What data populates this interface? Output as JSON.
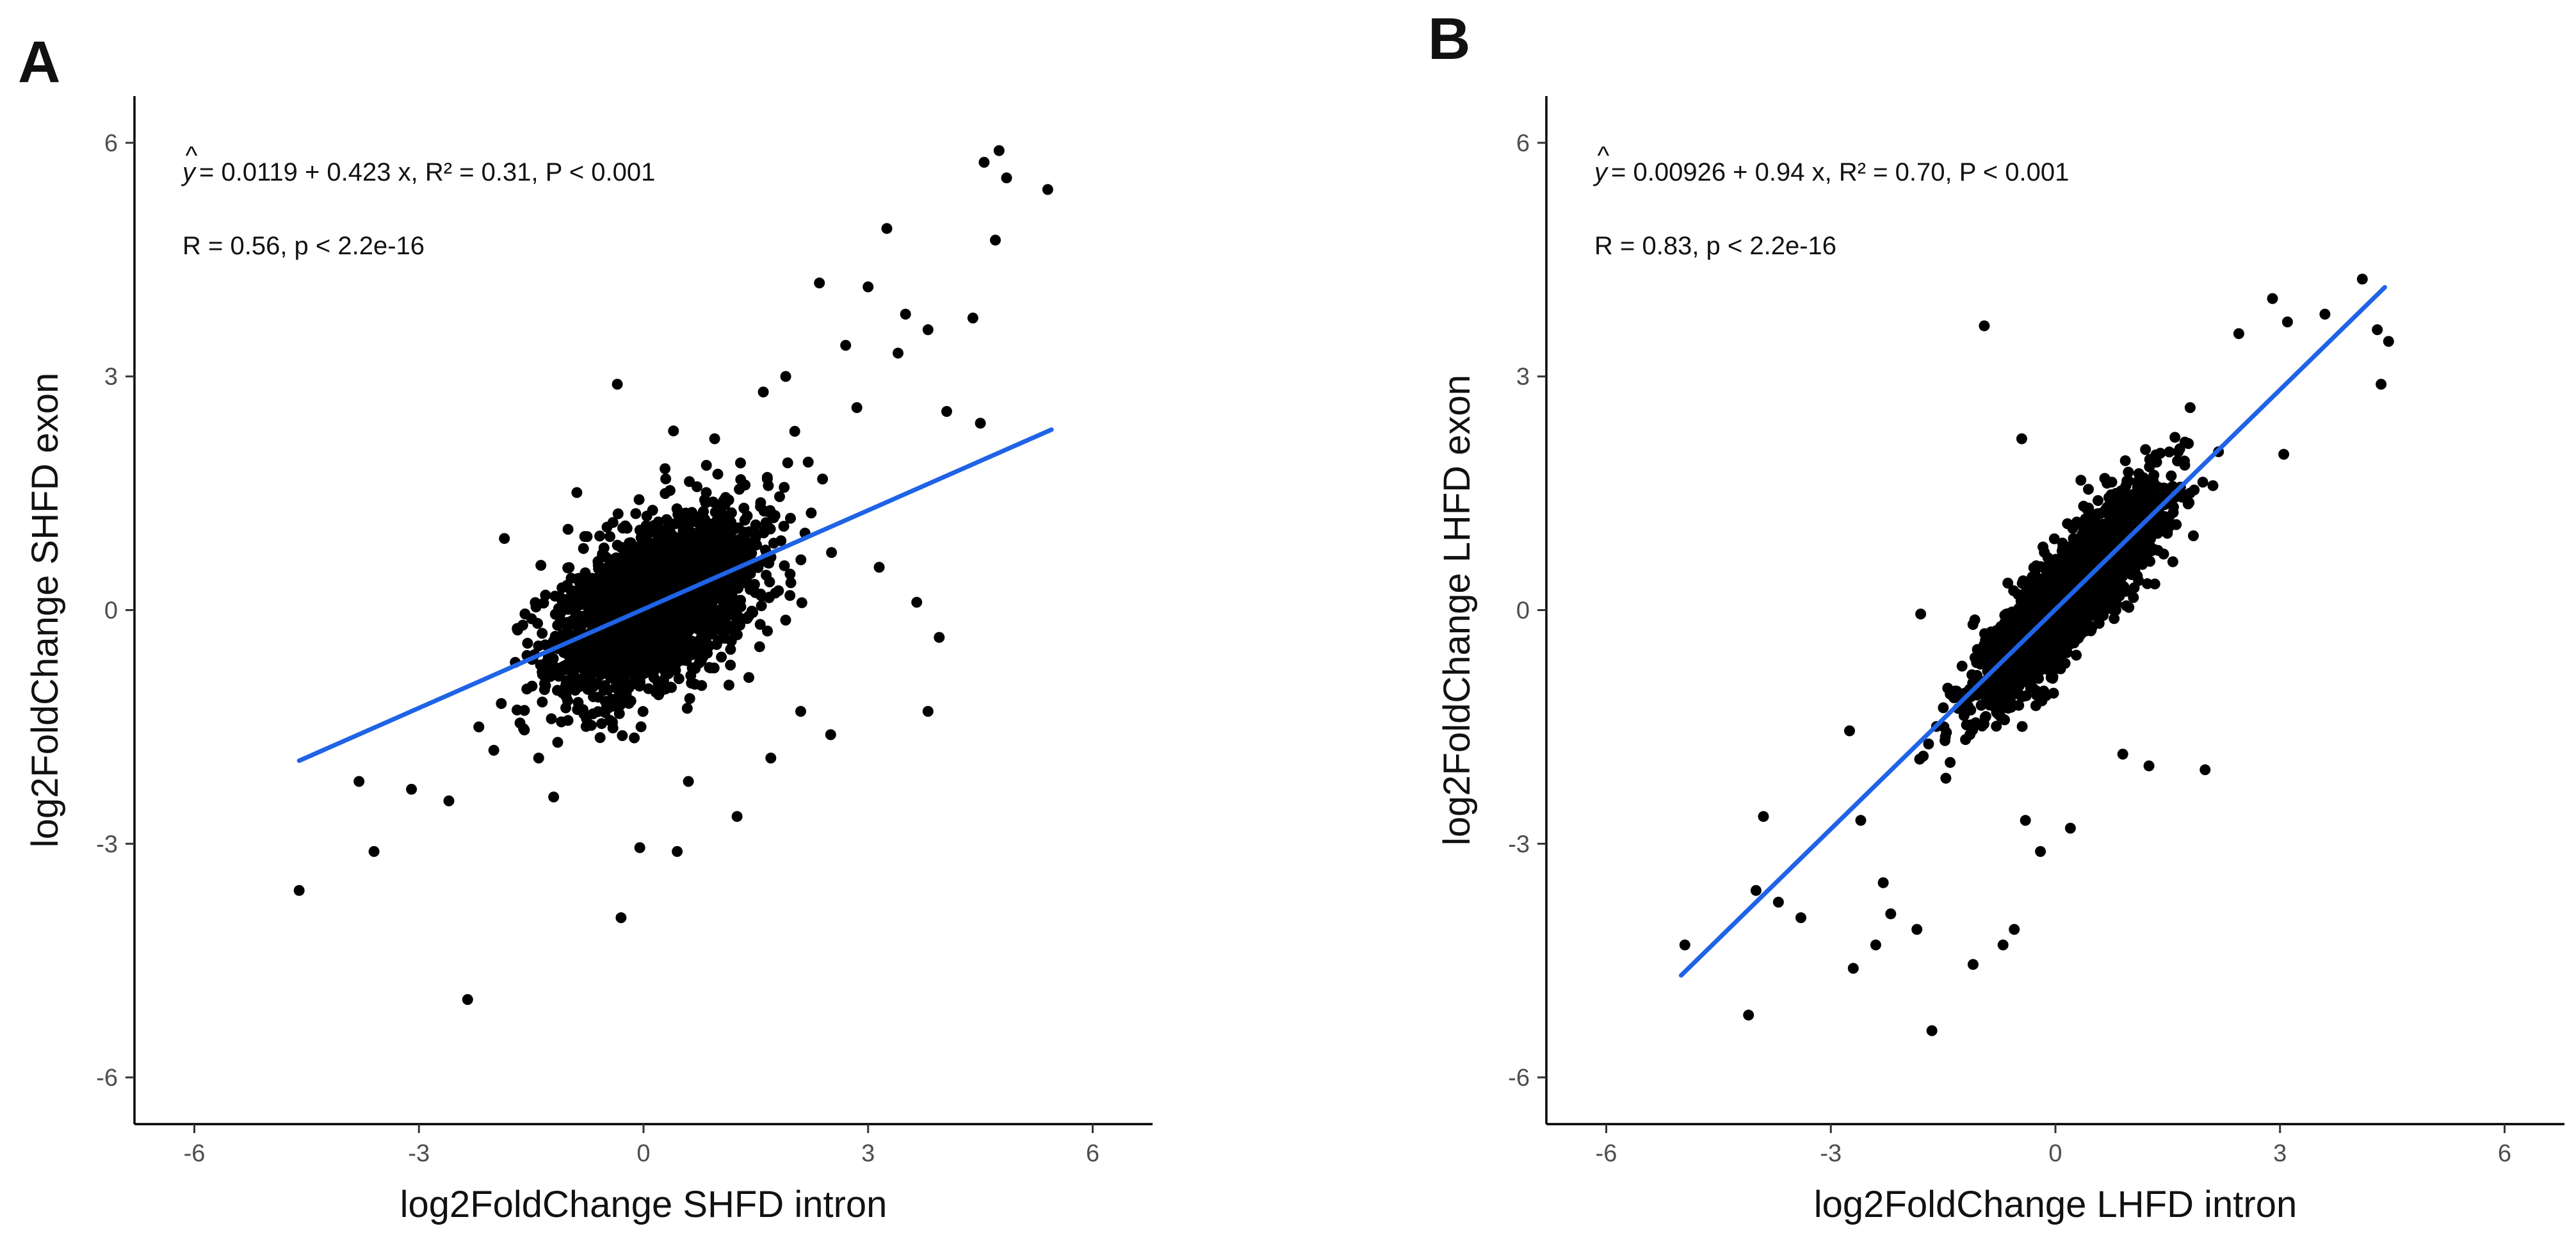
{
  "chart_data": [
    {
      "panel": "A",
      "type": "scatter",
      "xlabel": "log2FoldChange SHFD intron",
      "ylabel": "log2FoldChange SHFD exon",
      "xlim": [
        -6.8,
        6.8
      ],
      "ylim": [
        -6.6,
        6.6
      ],
      "xticks": [
        "-6",
        "-3",
        "0",
        "3",
        "6"
      ],
      "yticks": [
        "-6",
        "-3",
        "0",
        "3",
        "6"
      ],
      "regression": {
        "intercept": 0.0119,
        "slope": 0.423,
        "x_range": [
          -4.6,
          5.45
        ],
        "color": "#1f63e6"
      },
      "stats": {
        "equation": "= 0.0119 + 0.423 x, R² = 0.31, P < 0.001",
        "corr": "R = 0.56, p < 2.2e-16"
      },
      "synthetic": {
        "n": 2500,
        "sd_x": 0.65,
        "sd_res": 0.5,
        "seed": 11
      },
      "points": [
        [
          -4.6,
          -3.6
        ],
        [
          -3.8,
          -2.2
        ],
        [
          -3.6,
          -3.1
        ],
        [
          -3.1,
          -2.3
        ],
        [
          -2.6,
          -2.45
        ],
        [
          -2.35,
          -5.0
        ],
        [
          -0.3,
          -3.95
        ],
        [
          -0.05,
          -3.05
        ],
        [
          0.45,
          -3.1
        ],
        [
          1.25,
          -2.65
        ],
        [
          -1.2,
          -2.4
        ],
        [
          2.5,
          -1.6
        ],
        [
          4.55,
          5.75
        ],
        [
          4.75,
          5.9
        ],
        [
          4.85,
          5.55
        ],
        [
          5.4,
          5.4
        ],
        [
          4.7,
          4.75
        ],
        [
          3.25,
          4.9
        ],
        [
          2.35,
          4.2
        ],
        [
          3.0,
          4.15
        ],
        [
          3.5,
          3.8
        ],
        [
          3.8,
          3.6
        ],
        [
          3.4,
          3.3
        ],
        [
          4.4,
          3.75
        ],
        [
          4.5,
          2.4
        ],
        [
          -0.35,
          2.9
        ],
        [
          0.4,
          2.3
        ],
        [
          3.65,
          0.1
        ],
        [
          3.95,
          -0.35
        ],
        [
          3.8,
          -1.3
        ],
        [
          1.9,
          3.0
        ],
        [
          2.7,
          3.4
        ],
        [
          2.2,
          1.9
        ],
        [
          1.6,
          2.8
        ],
        [
          0.95,
          2.2
        ],
        [
          2.85,
          2.6
        ],
        [
          4.05,
          2.55
        ],
        [
          -1.65,
          -1.45
        ],
        [
          -2.0,
          -1.8
        ],
        [
          -2.2,
          -1.5
        ],
        [
          -1.4,
          -1.9
        ],
        [
          0.6,
          -2.2
        ],
        [
          1.7,
          -1.9
        ],
        [
          2.1,
          -1.3
        ],
        [
          -1.9,
          -1.2
        ]
      ]
    },
    {
      "panel": "B",
      "type": "scatter",
      "xlabel": "log2FoldChange LHFD intron",
      "ylabel": "log2FoldChange LHFD exon",
      "xlim": [
        -6.8,
        6.8
      ],
      "ylim": [
        -6.6,
        6.6
      ],
      "xticks": [
        "-6",
        "-3",
        "0",
        "3",
        "6"
      ],
      "yticks": [
        "-6",
        "-3",
        "0",
        "3",
        "6"
      ],
      "regression": {
        "intercept": 0.00926,
        "slope": 0.94,
        "x_range": [
          -5.0,
          4.4
        ],
        "color": "#1f63e6"
      },
      "stats": {
        "equation": "= 0.00926 + 0.94 x, R² = 0.70, P < 0.001",
        "corr": "R = 0.83, p < 2.2e-16"
      },
      "synthetic": {
        "n": 2500,
        "sd_x": 0.6,
        "sd_res": 0.33,
        "seed": 29
      },
      "points": [
        [
          -4.95,
          -4.3
        ],
        [
          -4.1,
          -5.2
        ],
        [
          -4.0,
          -3.6
        ],
        [
          -3.7,
          -3.75
        ],
        [
          -3.9,
          -2.65
        ],
        [
          -3.4,
          -3.95
        ],
        [
          -2.7,
          -4.6
        ],
        [
          -2.4,
          -4.3
        ],
        [
          -2.2,
          -3.9
        ],
        [
          -2.3,
          -3.5
        ],
        [
          -1.85,
          -4.1
        ],
        [
          -1.65,
          -5.4
        ],
        [
          -1.1,
          -4.55
        ],
        [
          -0.7,
          -4.3
        ],
        [
          -0.55,
          -4.1
        ],
        [
          -0.2,
          -3.1
        ],
        [
          -0.95,
          3.65
        ],
        [
          -0.45,
          2.2
        ],
        [
          4.1,
          4.25
        ],
        [
          4.45,
          3.45
        ],
        [
          4.35,
          2.9
        ],
        [
          4.3,
          3.6
        ],
        [
          3.6,
          3.8
        ],
        [
          2.9,
          4.0
        ],
        [
          3.1,
          3.7
        ],
        [
          2.45,
          3.55
        ],
        [
          3.05,
          2.0
        ],
        [
          1.8,
          2.6
        ],
        [
          2.0,
          -2.05
        ],
        [
          1.25,
          -2.0
        ],
        [
          0.9,
          -1.85
        ],
        [
          0.2,
          -2.8
        ],
        [
          -0.4,
          -2.7
        ],
        [
          -1.8,
          -0.05
        ],
        [
          -2.6,
          -2.7
        ],
        [
          -2.75,
          -1.55
        ]
      ]
    }
  ],
  "panel_labels": [
    "A",
    "B"
  ]
}
